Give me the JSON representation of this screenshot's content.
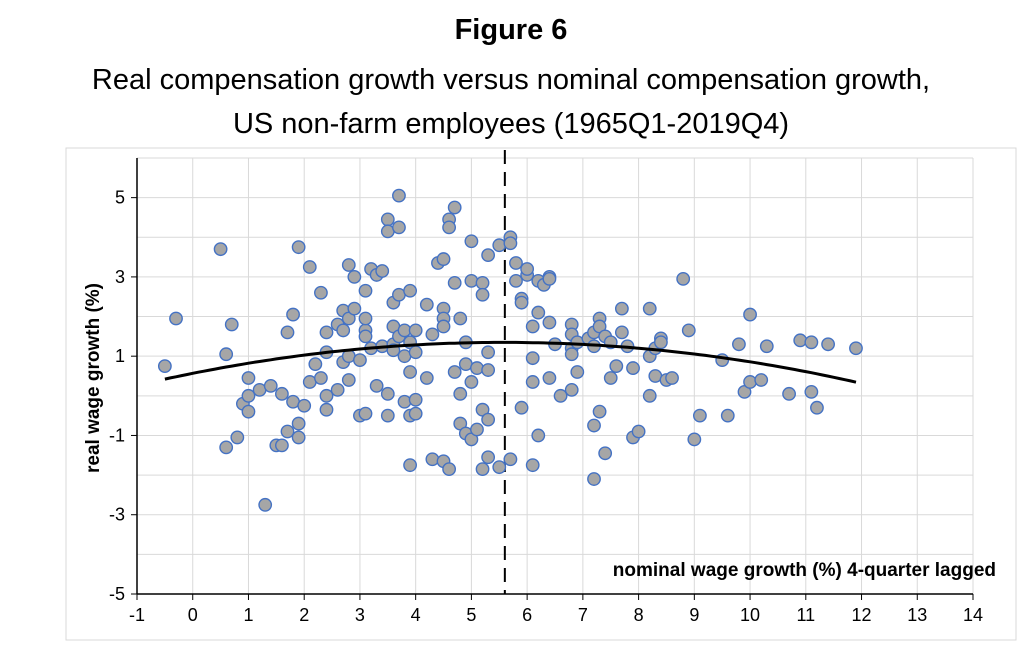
{
  "figure": {
    "label": "Figure 6",
    "title_line1": "Real compensation growth versus nominal compensation growth,",
    "title_line2": "US non-farm employees (1965Q1-2019Q4)"
  },
  "chart_data": {
    "type": "scatter",
    "title": "Real compensation growth versus nominal compensation growth, US non-farm employees (1965Q1-2019Q4)",
    "xlabel": "nominal wage growth (%) 4-quarter lagged",
    "ylabel": "real wage growth (%)",
    "xlim": [
      -1,
      14
    ],
    "ylim": [
      -5,
      6
    ],
    "x_ticks": [
      -1,
      0,
      1,
      2,
      3,
      4,
      5,
      6,
      7,
      8,
      9,
      10,
      11,
      12,
      13,
      14
    ],
    "y_ticks": [
      -5,
      -3,
      -1,
      1,
      3,
      5
    ],
    "grid": true,
    "reference_line_x": 5.6,
    "colors": {
      "marker_fill": "#a6a6a6",
      "marker_edge": "#4472c4",
      "trend": "#000000",
      "grid": "#d9d9d9"
    },
    "trend": {
      "type": "quadratic",
      "coefficients": [
        0.567,
        0.28,
        -0.0251
      ]
    },
    "points": [
      [
        -0.5,
        0.75
      ],
      [
        -0.3,
        1.95
      ],
      [
        0.5,
        3.7
      ],
      [
        0.6,
        1.05
      ],
      [
        0.6,
        -1.3
      ],
      [
        0.7,
        1.8
      ],
      [
        0.8,
        -1.05
      ],
      [
        0.9,
        -0.2
      ],
      [
        1.0,
        0.45
      ],
      [
        1.0,
        0
      ],
      [
        1.0,
        -0.4
      ],
      [
        1.2,
        0.15
      ],
      [
        1.3,
        -2.75
      ],
      [
        1.4,
        0.25
      ],
      [
        1.5,
        -1.25
      ],
      [
        1.6,
        0.05
      ],
      [
        1.6,
        -1.25
      ],
      [
        1.7,
        1.6
      ],
      [
        1.7,
        -0.9
      ],
      [
        1.8,
        2.05
      ],
      [
        1.8,
        -0.15
      ],
      [
        1.9,
        3.75
      ],
      [
        1.9,
        -0.7
      ],
      [
        1.9,
        -1.05
      ],
      [
        2.0,
        -0.25
      ],
      [
        2.1,
        0.35
      ],
      [
        2.1,
        3.25
      ],
      [
        2.2,
        0.8
      ],
      [
        2.3,
        2.6
      ],
      [
        2.3,
        0.45
      ],
      [
        2.4,
        1.1
      ],
      [
        2.4,
        -0.35
      ],
      [
        2.4,
        0
      ],
      [
        2.4,
        1.6
      ],
      [
        2.6,
        1.8
      ],
      [
        2.6,
        0.15
      ],
      [
        2.7,
        0.85
      ],
      [
        2.7,
        1.65
      ],
      [
        2.7,
        2.15
      ],
      [
        2.8,
        1.95
      ],
      [
        2.8,
        3.3
      ],
      [
        2.8,
        1.0
      ],
      [
        2.8,
        0.4
      ],
      [
        2.9,
        3.0
      ],
      [
        2.9,
        2.2
      ],
      [
        3.0,
        0.9
      ],
      [
        3.0,
        -0.5
      ],
      [
        3.1,
        2.65
      ],
      [
        3.1,
        1.65
      ],
      [
        3.1,
        1.95
      ],
      [
        3.1,
        1.5
      ],
      [
        3.1,
        -0.45
      ],
      [
        3.2,
        3.2
      ],
      [
        3.2,
        1.2
      ],
      [
        3.3,
        3.05
      ],
      [
        3.3,
        0.25
      ],
      [
        3.4,
        3.15
      ],
      [
        3.4,
        1.25
      ],
      [
        3.5,
        4.45
      ],
      [
        3.5,
        4.15
      ],
      [
        3.5,
        0.05
      ],
      [
        3.5,
        -0.5
      ],
      [
        3.6,
        2.35
      ],
      [
        3.6,
        1.75
      ],
      [
        3.6,
        1.3
      ],
      [
        3.6,
        1.15
      ],
      [
        3.7,
        5.05
      ],
      [
        3.7,
        4.25
      ],
      [
        3.7,
        2.55
      ],
      [
        3.7,
        1.5
      ],
      [
        3.8,
        1.65
      ],
      [
        3.8,
        1.0
      ],
      [
        3.8,
        -0.15
      ],
      [
        3.9,
        2.65
      ],
      [
        3.9,
        1.35
      ],
      [
        3.9,
        0.6
      ],
      [
        3.9,
        -0.5
      ],
      [
        3.9,
        -1.75
      ],
      [
        4.0,
        1.65
      ],
      [
        4.0,
        1.1
      ],
      [
        4.0,
        -0.1
      ],
      [
        4.0,
        -0.45
      ],
      [
        4.2,
        2.3
      ],
      [
        4.2,
        0.45
      ],
      [
        4.3,
        1.55
      ],
      [
        4.3,
        -1.6
      ],
      [
        4.4,
        3.35
      ],
      [
        4.5,
        3.45
      ],
      [
        4.5,
        2.2
      ],
      [
        4.5,
        1.95
      ],
      [
        4.5,
        1.75
      ],
      [
        4.5,
        -1.65
      ],
      [
        4.6,
        4.45
      ],
      [
        4.6,
        4.25
      ],
      [
        4.6,
        -1.85
      ],
      [
        4.7,
        4.75
      ],
      [
        4.7,
        2.85
      ],
      [
        4.7,
        0.6
      ],
      [
        4.8,
        1.95
      ],
      [
        4.8,
        0.05
      ],
      [
        4.8,
        -0.7
      ],
      [
        4.9,
        0.8
      ],
      [
        4.9,
        1.35
      ],
      [
        4.9,
        -0.95
      ],
      [
        5.0,
        3.9
      ],
      [
        5.0,
        2.9
      ],
      [
        5.0,
        0.35
      ],
      [
        5.0,
        -1.1
      ],
      [
        5.1,
        0.7
      ],
      [
        5.1,
        -0.85
      ],
      [
        5.2,
        2.85
      ],
      [
        5.2,
        2.55
      ],
      [
        5.2,
        -0.35
      ],
      [
        5.2,
        -1.85
      ],
      [
        5.3,
        3.55
      ],
      [
        5.3,
        1.1
      ],
      [
        5.3,
        0.65
      ],
      [
        5.3,
        -0.6
      ],
      [
        5.3,
        -1.55
      ],
      [
        5.5,
        3.8
      ],
      [
        5.5,
        -1.8
      ],
      [
        5.7,
        4.0
      ],
      [
        5.7,
        3.85
      ],
      [
        5.7,
        -1.6
      ],
      [
        5.8,
        3.35
      ],
      [
        5.8,
        2.9
      ],
      [
        5.9,
        2.45
      ],
      [
        5.9,
        2.35
      ],
      [
        5.9,
        -0.3
      ],
      [
        6.0,
        3.05
      ],
      [
        6.0,
        3.2
      ],
      [
        6.1,
        1.75
      ],
      [
        6.1,
        0.95
      ],
      [
        6.1,
        0.35
      ],
      [
        6.1,
        -1.75
      ],
      [
        6.2,
        2.9
      ],
      [
        6.2,
        2.1
      ],
      [
        6.2,
        -1.0
      ],
      [
        6.3,
        2.8
      ],
      [
        6.4,
        3.0
      ],
      [
        6.4,
        2.95
      ],
      [
        6.4,
        1.85
      ],
      [
        6.4,
        0.45
      ],
      [
        6.5,
        1.3
      ],
      [
        6.6,
        0
      ],
      [
        6.8,
        1.8
      ],
      [
        6.8,
        1.55
      ],
      [
        6.8,
        1.2
      ],
      [
        6.8,
        1.05
      ],
      [
        6.8,
        0.15
      ],
      [
        6.9,
        1.35
      ],
      [
        6.9,
        0.6
      ],
      [
        7.1,
        1.45
      ],
      [
        7.2,
        1.6
      ],
      [
        7.2,
        1.25
      ],
      [
        7.2,
        -0.75
      ],
      [
        7.2,
        -2.1
      ],
      [
        7.3,
        1.95
      ],
      [
        7.3,
        1.75
      ],
      [
        7.3,
        -0.4
      ],
      [
        7.4,
        1.5
      ],
      [
        7.4,
        -1.45
      ],
      [
        7.5,
        1.35
      ],
      [
        7.5,
        0.45
      ],
      [
        7.6,
        0.75
      ],
      [
        7.7,
        2.2
      ],
      [
        7.7,
        1.6
      ],
      [
        7.8,
        1.25
      ],
      [
        7.9,
        0.7
      ],
      [
        7.9,
        -1.05
      ],
      [
        8.0,
        -0.9
      ],
      [
        8.2,
        2.2
      ],
      [
        8.2,
        1.0
      ],
      [
        8.2,
        0
      ],
      [
        8.3,
        0.5
      ],
      [
        8.3,
        1.2
      ],
      [
        8.4,
        1.45
      ],
      [
        8.4,
        1.35
      ],
      [
        8.5,
        0.4
      ],
      [
        8.6,
        0.45
      ],
      [
        8.8,
        2.95
      ],
      [
        8.9,
        1.65
      ],
      [
        9.0,
        -1.1
      ],
      [
        9.1,
        -0.5
      ],
      [
        9.5,
        0.9
      ],
      [
        9.6,
        -0.5
      ],
      [
        9.8,
        1.3
      ],
      [
        9.9,
        0.1
      ],
      [
        10.0,
        2.05
      ],
      [
        10.0,
        0.35
      ],
      [
        10.2,
        0.4
      ],
      [
        10.3,
        1.25
      ],
      [
        10.7,
        0.05
      ],
      [
        10.9,
        1.4
      ],
      [
        11.1,
        1.35
      ],
      [
        11.1,
        0.1
      ],
      [
        11.2,
        -0.3
      ],
      [
        11.4,
        1.3
      ],
      [
        11.9,
        1.2
      ]
    ]
  }
}
